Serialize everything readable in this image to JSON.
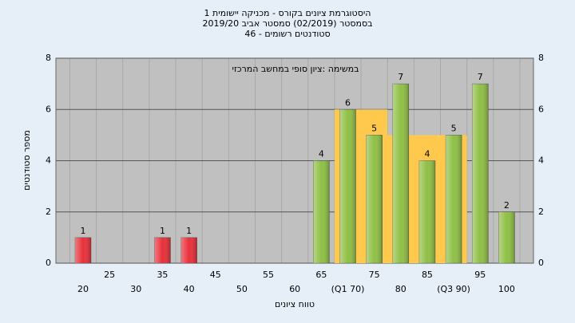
{
  "chart_data": {
    "type": "bar",
    "title": [
      "היסטוגרמת ציונים בקורס - מכניקה יישומית 1",
      "בסמסטר  (02/2019)  סמסטר אביב 2019/20",
      "סטודנטים רשומים - 46"
    ],
    "annotation": "במשימה :ציון סופי במחשב המרכזי",
    "x_label": "טווח ציונים",
    "y_label": "מספר סטודנטים",
    "categories": [
      "20",
      "25",
      "30",
      "35",
      "40",
      "45",
      "50",
      "55",
      "60",
      "65",
      "(Q1 70)",
      "75",
      "80",
      "85",
      "(Q3 90)",
      "95",
      "100"
    ],
    "values": [
      1,
      0,
      0,
      1,
      1,
      0,
      0,
      0,
      0,
      4,
      6,
      5,
      7,
      4,
      5,
      7,
      2
    ],
    "colors": [
      "#e8303a",
      "#e8303a",
      "#e8303a",
      "#e8303a",
      "#e8303a",
      "#8fbf45",
      "#8fbf45",
      "#8fbf45",
      "#8fbf45",
      "#8fbf45",
      "#8fbf45",
      "#8fbf45",
      "#8fbf45",
      "#8fbf45",
      "#8fbf45",
      "#8fbf45",
      "#8fbf45"
    ],
    "area_values": [
      null,
      null,
      null,
      null,
      null,
      null,
      null,
      null,
      null,
      null,
      6,
      6,
      5,
      5,
      5,
      null,
      null
    ],
    "area_color": "#ffc94d",
    "ylim": [
      0,
      8
    ],
    "yticks": [
      0,
      2,
      4,
      6,
      8
    ],
    "grid": true
  }
}
